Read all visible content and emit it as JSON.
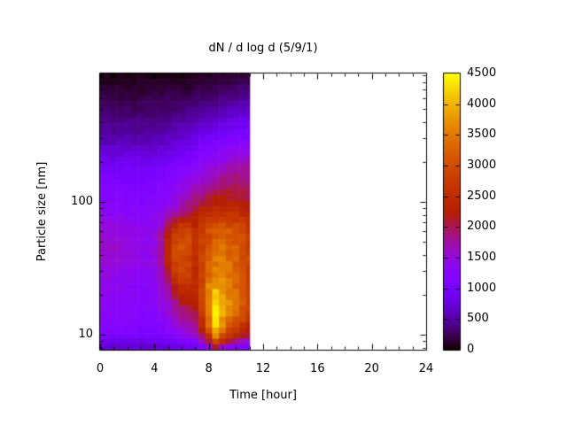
{
  "figure": {
    "background": "#ffffff",
    "text_color": "#000000"
  },
  "chart_data": {
    "type": "heatmap",
    "title": "dN / d log d (5/9/1)",
    "xlabel": "Time [hour]",
    "ylabel": "Particle size [nm]",
    "x_axis": {
      "min": 0,
      "max": 24,
      "major_ticks": [
        0,
        4,
        8,
        12,
        16,
        20,
        24
      ],
      "minor_tick_step_hours": 1
    },
    "y_axis": {
      "scale": "log",
      "min": 7.7,
      "max": 926,
      "major_ticks": [
        10,
        100
      ],
      "minor_ticks_per_decade": [
        2,
        3,
        4,
        5,
        6,
        7,
        8,
        9
      ]
    },
    "colorbar": {
      "min": 0,
      "max": 4500,
      "ticks": [
        0,
        500,
        1000,
        1500,
        2000,
        2500,
        3000,
        3500,
        4000,
        4500
      ],
      "palette": "gnuplot traditional pm3d (rgbformulae 7,5,15): R=sqrt(g), G=g^3, B=sin(360*g)"
    },
    "data_extent_hours": [
      0,
      11
    ],
    "times_h": [
      0,
      0.5,
      1,
      1.5,
      2,
      2.5,
      3,
      3.5,
      4,
      4.5,
      5,
      5.5,
      6,
      6.5,
      7,
      7.5,
      8,
      8.5,
      9,
      9.5,
      10,
      10.5,
      11
    ],
    "sizes_nm": [
      926,
      700,
      450,
      280,
      180,
      120,
      85,
      60,
      42,
      30,
      22,
      17,
      13,
      10,
      8
    ],
    "values": [
      [
        60,
        50,
        40,
        50,
        60,
        40,
        50,
        60,
        50,
        60,
        70,
        60,
        50,
        60,
        70,
        80,
        90,
        100,
        110,
        120,
        130,
        140,
        150
      ],
      [
        150,
        140,
        130,
        140,
        150,
        140,
        130,
        140,
        150,
        160,
        170,
        160,
        150,
        160,
        180,
        200,
        220,
        240,
        260,
        280,
        300,
        320,
        340
      ],
      [
        350,
        330,
        310,
        320,
        330,
        320,
        310,
        320,
        330,
        350,
        370,
        390,
        410,
        430,
        460,
        500,
        540,
        580,
        620,
        660,
        700,
        730,
        750
      ],
      [
        600,
        580,
        560,
        570,
        580,
        570,
        560,
        570,
        590,
        620,
        660,
        710,
        760,
        820,
        880,
        950,
        1020,
        1080,
        1130,
        1170,
        1200,
        1220,
        1230
      ],
      [
        1000,
        980,
        960,
        960,
        970,
        960,
        950,
        960,
        980,
        1010,
        1050,
        1100,
        1150,
        1220,
        1300,
        1380,
        1460,
        1540,
        1620,
        1680,
        1720,
        1750,
        1780
      ],
      [
        1200,
        1180,
        1160,
        1150,
        1160,
        1150,
        1140,
        1150,
        1180,
        1220,
        1280,
        1360,
        1450,
        1560,
        1680,
        1780,
        1880,
        1960,
        2020,
        2050,
        2040,
        2000,
        1960
      ],
      [
        1350,
        1320,
        1300,
        1280,
        1280,
        1270,
        1260,
        1280,
        1320,
        1380,
        1480,
        1620,
        1800,
        2000,
        2150,
        2300,
        2420,
        2500,
        2540,
        2520,
        2460,
        2380,
        2300
      ],
      [
        1600,
        1570,
        1540,
        1500,
        1460,
        1420,
        1390,
        1400,
        1450,
        1700,
        2200,
        2700,
        2900,
        2850,
        2500,
        2700,
        3000,
        3200,
        3250,
        3200,
        3100,
        2950,
        2800
      ],
      [
        1620,
        1600,
        1570,
        1530,
        1490,
        1450,
        1420,
        1430,
        1500,
        1800,
        2400,
        2900,
        3050,
        2950,
        2550,
        2850,
        3200,
        3400,
        3420,
        3350,
        3200,
        3000,
        2850
      ],
      [
        1520,
        1500,
        1470,
        1440,
        1410,
        1380,
        1360,
        1380,
        1450,
        1700,
        2200,
        2700,
        2900,
        2800,
        2450,
        2900,
        3300,
        3550,
        3500,
        3400,
        3250,
        3050,
        2850
      ],
      [
        1420,
        1400,
        1380,
        1350,
        1330,
        1300,
        1280,
        1300,
        1350,
        1500,
        1800,
        2200,
        2500,
        2500,
        2400,
        3000,
        3600,
        3950,
        3800,
        3600,
        3400,
        3150,
        2900
      ],
      [
        1360,
        1340,
        1310,
        1290,
        1260,
        1240,
        1220,
        1230,
        1280,
        1380,
        1550,
        1800,
        2050,
        2150,
        2200,
        2900,
        3700,
        4350,
        3950,
        3650,
        3380,
        3100,
        2850
      ],
      [
        1300,
        1280,
        1260,
        1240,
        1220,
        1200,
        1180,
        1190,
        1220,
        1300,
        1420,
        1550,
        1700,
        1800,
        1900,
        2600,
        3500,
        4450,
        3850,
        3450,
        3150,
        2900,
        2650
      ],
      [
        1150,
        1130,
        1100,
        1080,
        1060,
        1050,
        1040,
        1050,
        1080,
        1120,
        1200,
        1300,
        1400,
        1500,
        1600,
        2100,
        2800,
        3800,
        3200,
        2800,
        2550,
        2350,
        2150
      ],
      [
        700,
        690,
        680,
        670,
        660,
        650,
        640,
        650,
        660,
        680,
        720,
        760,
        800,
        850,
        900,
        1100,
        1400,
        2000,
        1600,
        1350,
        1200,
        1100,
        1000
      ]
    ]
  }
}
